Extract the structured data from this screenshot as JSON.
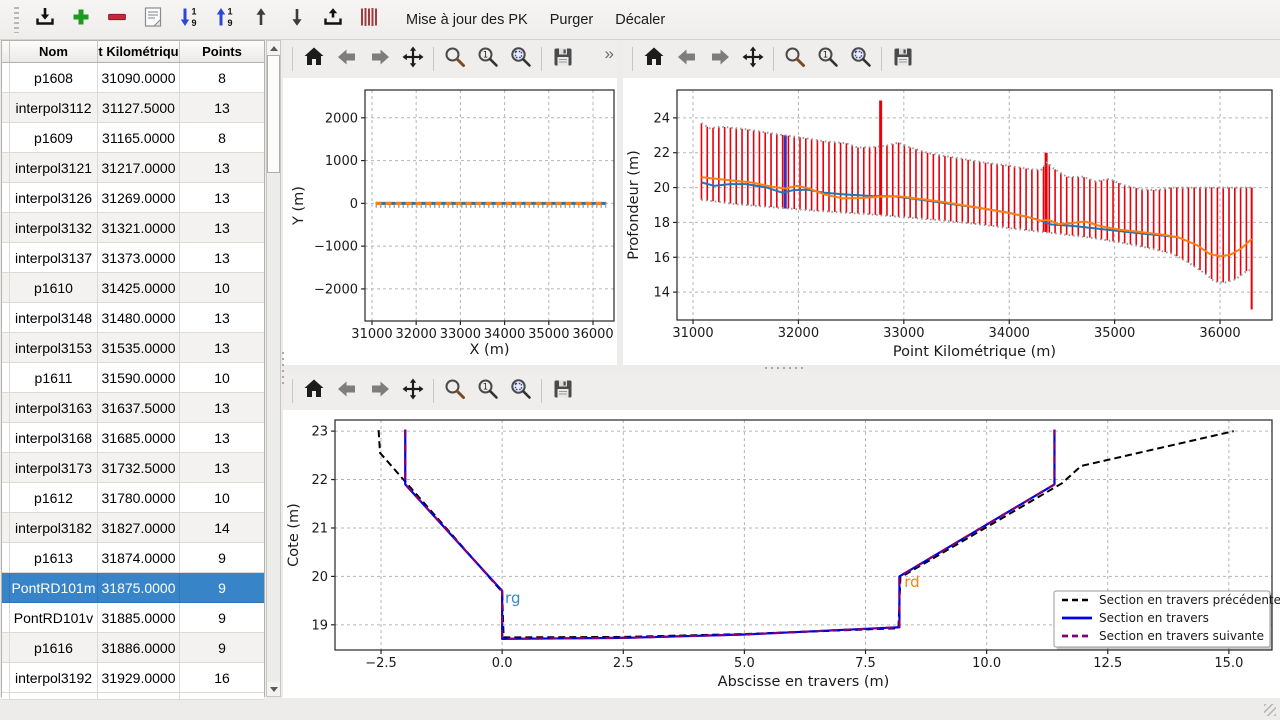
{
  "toolbar": {
    "icons": [
      {
        "name": "import"
      },
      {
        "name": "add"
      },
      {
        "name": "remove"
      },
      {
        "name": "document"
      },
      {
        "name": "sort-descending-19"
      },
      {
        "name": "sort-ascending-19"
      },
      {
        "name": "move-up"
      },
      {
        "name": "move-down"
      },
      {
        "name": "export"
      },
      {
        "name": "pk-stripes"
      }
    ],
    "menus": [
      "Mise à jour des PK",
      "Purger",
      "Décaler"
    ]
  },
  "table": {
    "columns": [
      "Nom",
      "t Kilométriqu",
      "Points"
    ],
    "selected": "PontRD101m",
    "rows": [
      [
        "p1608",
        "31090.0000",
        "8"
      ],
      [
        "interpol3112",
        "31127.5000",
        "13"
      ],
      [
        "p1609",
        "31165.0000",
        "8"
      ],
      [
        "interpol3121",
        "31217.0000",
        "13"
      ],
      [
        "interpol3126",
        "31269.0000",
        "13"
      ],
      [
        "interpol3132",
        "31321.0000",
        "13"
      ],
      [
        "interpol3137",
        "31373.0000",
        "13"
      ],
      [
        "p1610",
        "31425.0000",
        "10"
      ],
      [
        "interpol3148",
        "31480.0000",
        "13"
      ],
      [
        "interpol3153",
        "31535.0000",
        "13"
      ],
      [
        "p1611",
        "31590.0000",
        "10"
      ],
      [
        "interpol3163",
        "31637.5000",
        "13"
      ],
      [
        "interpol3168",
        "31685.0000",
        "13"
      ],
      [
        "interpol3173",
        "31732.5000",
        "13"
      ],
      [
        "p1612",
        "31780.0000",
        "10"
      ],
      [
        "interpol3182",
        "31827.0000",
        "14"
      ],
      [
        "p1613",
        "31874.0000",
        "9"
      ],
      [
        "PontRD101m",
        "31875.0000",
        "9"
      ],
      [
        "PontRD101v",
        "31885.0000",
        "9"
      ],
      [
        "p1616",
        "31886.0000",
        "9"
      ],
      [
        "interpol3192",
        "31929.0000",
        "16"
      ]
    ]
  },
  "plot_toolbar": {
    "icons": [
      "home",
      "back",
      "forward",
      "pan",
      "zoom",
      "zoom-one",
      "zoom-rect",
      "save"
    ],
    "overflow_chevron": "»"
  },
  "colors": {
    "selection": "#3884c9",
    "bar_red": "#e8000b",
    "profile_blue": "#1f77b4",
    "profile_orange": "#ff7f0e",
    "section_blue": "#0000e6",
    "section_purple": "#800080"
  },
  "chart_data": [
    {
      "type": "line",
      "xlabel": "X (m)",
      "ylabel": "Y (m)",
      "xlim": [
        30842,
        36475
      ],
      "ylim": [
        -2750,
        2650
      ],
      "xticks": [
        {
          "v": 31000,
          "l": "31000"
        },
        {
          "v": 32000,
          "l": "32000"
        },
        {
          "v": 33000,
          "l": "33000"
        },
        {
          "v": 34000,
          "l": "34000"
        },
        {
          "v": 35000,
          "l": "35000"
        },
        {
          "v": 36000,
          "l": "36000"
        }
      ],
      "yticks": [
        {
          "v": -2000,
          "l": "−2000"
        },
        {
          "v": -1000,
          "l": "−1000"
        },
        {
          "v": 0,
          "l": "0"
        },
        {
          "v": 1000,
          "l": "1000"
        },
        {
          "v": 2000,
          "l": "2000"
        }
      ],
      "grid": true,
      "series": [
        {
          "name": "trace-shadow",
          "color": "#a8a8a8",
          "width": 3,
          "dash": "1.5 3",
          "points": [
            [
              31080,
              -70
            ],
            [
              36300,
              -70
            ]
          ]
        },
        {
          "name": "trace-axe-blue",
          "color": "#1f77b4",
          "width": 3,
          "points": [
            [
              31080,
              0
            ],
            [
              36300,
              0
            ]
          ]
        },
        {
          "name": "trace-axe-orange",
          "color": "#ff7f0e",
          "width": 3,
          "dash": "6 4",
          "points": [
            [
              31080,
              0
            ],
            [
              36300,
              0
            ]
          ]
        }
      ]
    },
    {
      "type": "line-with-bars",
      "xlabel": "Point Kilométrique (m)",
      "ylabel": "Profondeur (m)",
      "xlim": [
        30848,
        36493
      ],
      "ylim": [
        12.4,
        25.6
      ],
      "xticks": [
        {
          "v": 31000,
          "l": "31000"
        },
        {
          "v": 32000,
          "l": "32000"
        },
        {
          "v": 33000,
          "l": "33000"
        },
        {
          "v": 34000,
          "l": "34000"
        },
        {
          "v": 35000,
          "l": "35000"
        },
        {
          "v": 36000,
          "l": "36000"
        }
      ],
      "yticks": [
        {
          "v": 14,
          "l": "14"
        },
        {
          "v": 16,
          "l": "16"
        },
        {
          "v": 18,
          "l": "18"
        },
        {
          "v": 20,
          "l": "20"
        },
        {
          "v": 22,
          "l": "22"
        },
        {
          "v": 24,
          "l": "24"
        }
      ],
      "grid": true,
      "bars": {
        "color": "#e8000b",
        "width": 1.6,
        "x_start": 31080,
        "x_end": 36300,
        "x_step": 55,
        "top_series": "envelope-top",
        "bottom_series": "envelope-bottom"
      },
      "special_bars": [
        {
          "x": 32780,
          "y0": 18.45,
          "y1": 25.0,
          "width": 3
        },
        {
          "x": 34350,
          "y0": 17.45,
          "y1": 22.0,
          "width": 3
        },
        {
          "x": 36300,
          "y0": 13.0,
          "y1": 20.0,
          "width": 2
        }
      ],
      "selected_bar": {
        "x": 31875,
        "y0": 18.8,
        "y1": 23.0,
        "color": "#3232b8",
        "width": 3
      },
      "series": [
        {
          "name": "envelope-top",
          "color": "#9a9a9a",
          "width": 2,
          "dash": "1.5 3",
          "points": [
            [
              31080,
              23.7
            ],
            [
              31160,
              23.4
            ],
            [
              31260,
              23.5
            ],
            [
              31500,
              23.35
            ],
            [
              31700,
              23.15
            ],
            [
              31875,
              23.0
            ],
            [
              32050,
              22.85
            ],
            [
              32250,
              22.65
            ],
            [
              32450,
              22.55
            ],
            [
              32560,
              22.3
            ],
            [
              32700,
              22.32
            ],
            [
              32830,
              22.4
            ],
            [
              32950,
              22.58
            ],
            [
              33060,
              22.3
            ],
            [
              33250,
              21.95
            ],
            [
              33500,
              21.7
            ],
            [
              33750,
              21.45
            ],
            [
              34000,
              21.25
            ],
            [
              34200,
              21.05
            ],
            [
              34300,
              21.0
            ],
            [
              34360,
              21.45
            ],
            [
              34420,
              21.1
            ],
            [
              34550,
              20.6
            ],
            [
              34700,
              20.62
            ],
            [
              34820,
              20.35
            ],
            [
              34950,
              20.5
            ],
            [
              35080,
              20.15
            ],
            [
              35250,
              19.9
            ],
            [
              35400,
              19.85
            ],
            [
              35550,
              20.0
            ],
            [
              36300,
              20.0
            ]
          ]
        },
        {
          "name": "envelope-bottom",
          "color": "#9a9a9a",
          "width": 2,
          "dash": "1.5 3",
          "points": [
            [
              31080,
              19.3
            ],
            [
              31400,
              19.05
            ],
            [
              31800,
              18.85
            ],
            [
              32200,
              18.65
            ],
            [
              32600,
              18.5
            ],
            [
              32900,
              18.35
            ],
            [
              33300,
              18.15
            ],
            [
              33700,
              17.9
            ],
            [
              34100,
              17.6
            ],
            [
              34400,
              17.4
            ],
            [
              34800,
              17.1
            ],
            [
              35100,
              16.8
            ],
            [
              35350,
              16.5
            ],
            [
              35550,
              16.2
            ],
            [
              35700,
              15.7
            ],
            [
              35850,
              15.1
            ],
            [
              35950,
              14.6
            ],
            [
              36050,
              14.55
            ],
            [
              36150,
              14.75
            ],
            [
              36250,
              15.2
            ],
            [
              36300,
              15.3
            ]
          ]
        },
        {
          "name": "profil-bleu",
          "color": "#1f77b4",
          "width": 2,
          "points": [
            [
              31080,
              20.3
            ],
            [
              31200,
              20.1
            ],
            [
              31350,
              20.2
            ],
            [
              31500,
              20.2
            ],
            [
              31700,
              20.0
            ],
            [
              31850,
              19.7
            ],
            [
              31950,
              19.85
            ],
            [
              32080,
              19.88
            ],
            [
              32250,
              19.7
            ],
            [
              32450,
              19.6
            ],
            [
              32700,
              19.52
            ],
            [
              32900,
              19.5
            ],
            [
              33100,
              19.35
            ],
            [
              33400,
              19.1
            ],
            [
              33700,
              18.85
            ],
            [
              34000,
              18.55
            ],
            [
              34250,
              18.2
            ],
            [
              34400,
              17.88
            ],
            [
              34600,
              17.8
            ],
            [
              34900,
              17.6
            ],
            [
              35200,
              17.4
            ],
            [
              35450,
              17.25
            ],
            [
              35600,
              17.15
            ]
          ]
        },
        {
          "name": "profil-orange",
          "color": "#ff7f0e",
          "width": 2,
          "points": [
            [
              31080,
              20.6
            ],
            [
              31300,
              20.45
            ],
            [
              31550,
              20.3
            ],
            [
              31750,
              20.05
            ],
            [
              31875,
              19.95
            ],
            [
              31990,
              20.1
            ],
            [
              32100,
              19.95
            ],
            [
              32250,
              19.6
            ],
            [
              32420,
              19.38
            ],
            [
              32600,
              19.4
            ],
            [
              32780,
              19.48
            ],
            [
              32950,
              19.5
            ],
            [
              33150,
              19.35
            ],
            [
              33400,
              19.15
            ],
            [
              33700,
              18.85
            ],
            [
              33950,
              18.6
            ],
            [
              34150,
              18.35
            ],
            [
              34300,
              18.1
            ],
            [
              34370,
              18.15
            ],
            [
              34470,
              17.9
            ],
            [
              34620,
              17.98
            ],
            [
              34720,
              18.05
            ],
            [
              34870,
              17.78
            ],
            [
              35050,
              17.58
            ],
            [
              35250,
              17.45
            ],
            [
              35450,
              17.3
            ],
            [
              35600,
              17.15
            ],
            [
              35780,
              16.7
            ],
            [
              35900,
              16.2
            ],
            [
              36000,
              16.05
            ],
            [
              36100,
              16.15
            ],
            [
              36200,
              16.5
            ],
            [
              36300,
              17.05
            ]
          ]
        }
      ]
    },
    {
      "type": "line",
      "xlabel": "Abscisse en travers (m)",
      "ylabel": "Cote (m)",
      "xlim": [
        -3.45,
        15.89
      ],
      "ylim": [
        18.48,
        23.23
      ],
      "xticks": [
        {
          "v": -2.5,
          "l": "−2.5"
        },
        {
          "v": 0,
          "l": "0.0"
        },
        {
          "v": 2.5,
          "l": "2.5"
        },
        {
          "v": 5,
          "l": "5.0"
        },
        {
          "v": 7.5,
          "l": "7.5"
        },
        {
          "v": 10,
          "l": "10.0"
        },
        {
          "v": 12.5,
          "l": "12.5"
        },
        {
          "v": 15,
          "l": "15.0"
        }
      ],
      "yticks": [
        {
          "v": 19,
          "l": "19"
        },
        {
          "v": 20,
          "l": "20"
        },
        {
          "v": 21,
          "l": "21"
        },
        {
          "v": 22,
          "l": "22"
        },
        {
          "v": 23,
          "l": "23"
        }
      ],
      "grid": true,
      "legend_loc": "lower right",
      "series": [
        {
          "name": "precedente",
          "label": "Section en travers précédente",
          "color": "#000000",
          "width": 2,
          "dash": "7 4",
          "points": [
            [
              -2.55,
              23.02
            ],
            [
              -2.52,
              22.55
            ],
            [
              0.0,
              19.68
            ],
            [
              0.03,
              18.74
            ],
            [
              2.5,
              18.75
            ],
            [
              5.0,
              18.81
            ],
            [
              8.18,
              18.93
            ],
            [
              8.22,
              19.98
            ],
            [
              11.55,
              21.92
            ],
            [
              11.95,
              22.28
            ],
            [
              15.1,
              23.0
            ]
          ]
        },
        {
          "name": "section",
          "label": "Section en travers",
          "color": "#0000e6",
          "width": 2.2,
          "points": [
            [
              -2.0,
              23.03
            ],
            [
              -2.0,
              21.9
            ],
            [
              0.0,
              19.7
            ],
            [
              0.0,
              18.71
            ],
            [
              2.5,
              18.73
            ],
            [
              5.0,
              18.8
            ],
            [
              8.2,
              18.95
            ],
            [
              8.2,
              20.0
            ],
            [
              11.4,
              21.9
            ],
            [
              11.4,
              23.03
            ]
          ]
        },
        {
          "name": "suivante",
          "label": "Section en travers suivante",
          "color": "#800080",
          "width": 2.2,
          "dash": "8 6",
          "points": [
            [
              -2.0,
              23.03
            ],
            [
              -2.0,
              21.9
            ],
            [
              0.0,
              19.7
            ],
            [
              0.0,
              18.71
            ],
            [
              2.5,
              18.73
            ],
            [
              5.0,
              18.8
            ],
            [
              8.2,
              18.95
            ],
            [
              8.2,
              20.0
            ],
            [
              11.4,
              21.9
            ],
            [
              11.4,
              23.03
            ]
          ]
        }
      ],
      "annotations": [
        {
          "text": "rg",
          "x": 0.06,
          "y": 19.45,
          "color": "#3a87c8"
        },
        {
          "text": "rd",
          "x": 8.3,
          "y": 19.78,
          "color": "#ff7f0e"
        }
      ]
    }
  ]
}
